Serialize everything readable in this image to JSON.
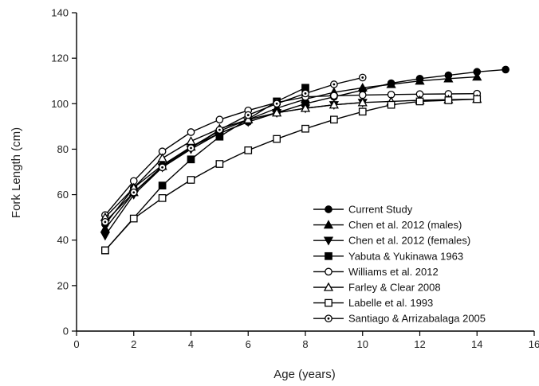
{
  "chart_data": {
    "type": "line",
    "title": "",
    "xlabel": "Age (years)",
    "ylabel": "Fork Length (cm)",
    "xlim": [
      0,
      16
    ],
    "ylim": [
      0,
      140
    ],
    "x_ticks": [
      "0",
      "2",
      "4",
      "6",
      "8",
      "10",
      "12",
      "14",
      "16"
    ],
    "y_ticks": [
      "0",
      "20",
      "40",
      "60",
      "80",
      "100",
      "120",
      "140"
    ],
    "grid": false,
    "legend_position": "bottom-right",
    "series": [
      {
        "name": "Current Study",
        "marker": "circle-filled",
        "x": [
          1,
          2,
          3,
          4,
          5,
          6,
          7,
          8,
          9,
          10,
          11,
          12,
          13,
          14,
          15
        ],
        "y": [
          47,
          63,
          73,
          81,
          87,
          92,
          96,
          100,
          103,
          106,
          109,
          111,
          112.5,
          114,
          115
        ]
      },
      {
        "name": "Chen et al. 2012 (males)",
        "marker": "triangle-up-filled",
        "x": [
          1,
          2,
          3,
          4,
          5,
          6,
          7,
          8,
          9,
          10,
          11,
          12,
          13,
          14
        ],
        "y": [
          45,
          61,
          72.5,
          81,
          88,
          93,
          98,
          102,
          105,
          107,
          108.5,
          110,
          111,
          111.8
        ]
      },
      {
        "name": "Chen et al. 2012 (females)",
        "marker": "triangle-down-filled",
        "x": [
          1,
          2,
          3,
          4,
          5,
          6,
          7,
          8,
          9,
          10
        ],
        "y": [
          42,
          60,
          72,
          80,
          87,
          92,
          96,
          98,
          99.5,
          100.5
        ]
      },
      {
        "name": "Yabuta & Yukinawa 1963",
        "marker": "square-filled",
        "x": [
          1,
          3,
          4,
          5,
          7,
          8
        ],
        "y": [
          35.5,
          64,
          75.5,
          85.5,
          101,
          107
        ]
      },
      {
        "name": "Williams et al. 2012",
        "marker": "circle-open",
        "x": [
          1,
          2,
          3,
          4,
          5,
          6,
          7,
          8,
          9,
          10,
          11,
          12,
          13,
          14
        ],
        "y": [
          51,
          66,
          79,
          87.5,
          93,
          97,
          100.5,
          103,
          103.5,
          103.8,
          104,
          104.2,
          104.3,
          104.4
        ]
      },
      {
        "name": "Farley & Clear 2008",
        "marker": "triangle-up-open",
        "x": [
          1,
          2,
          3,
          4,
          5,
          6,
          7,
          8,
          9,
          10,
          11,
          12,
          13,
          14
        ],
        "y": [
          50,
          63,
          76,
          83.5,
          89,
          93,
          96,
          98,
          99.5,
          100.5,
          101,
          101.5,
          101.8,
          102
        ]
      },
      {
        "name": "Labelle et al. 1993",
        "marker": "square-open",
        "x": [
          1,
          2,
          3,
          4,
          5,
          6,
          7,
          8,
          9,
          10,
          11,
          12,
          13,
          14
        ],
        "y": [
          35.5,
          49.5,
          58.5,
          66.5,
          73.5,
          79.5,
          84.5,
          89,
          93,
          96.5,
          99.5,
          101,
          101.5,
          102
        ]
      },
      {
        "name": "Santiago & Arrizabalaga 2005",
        "marker": "circle-open-dot",
        "x": [
          1,
          2,
          3,
          4,
          5,
          6,
          7,
          8,
          9,
          10
        ],
        "y": [
          48,
          61,
          72,
          80.5,
          88.5,
          95,
          100,
          104.5,
          108.5,
          111.5
        ]
      }
    ]
  }
}
